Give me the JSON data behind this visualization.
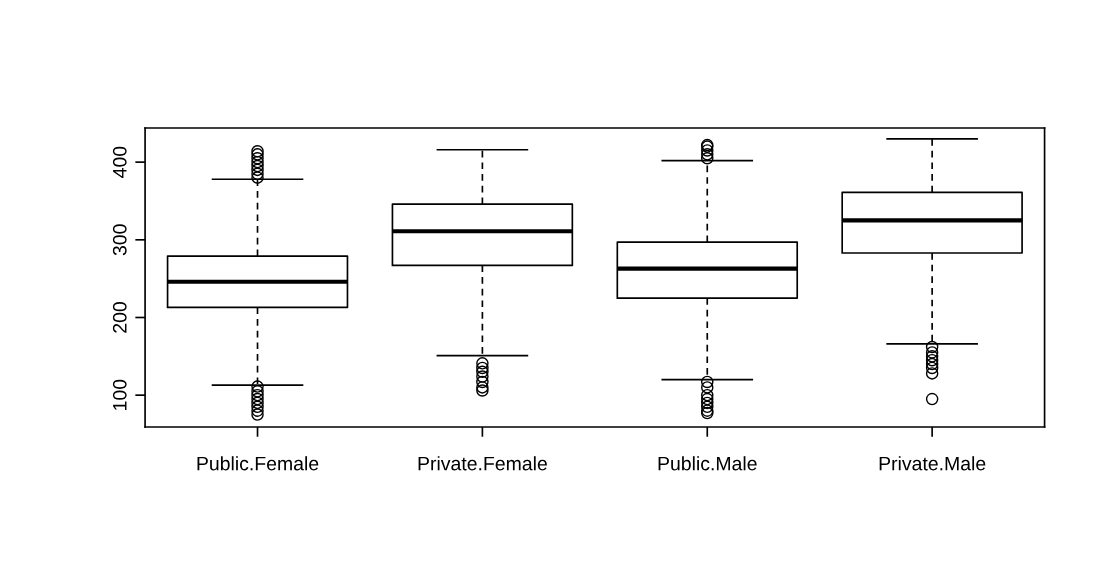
{
  "chart_data": {
    "type": "box",
    "categories": [
      "Public.Female",
      "Private.Female",
      "Public.Male",
      "Private.Male"
    ],
    "boxes": [
      {
        "low": 113,
        "q1": 213,
        "median": 246,
        "q3": 279,
        "high": 378,
        "outliers": [
          380,
          385,
          390,
          395,
          400,
          405,
          410,
          414,
          111,
          105,
          100,
          95,
          90,
          85,
          80,
          75
        ]
      },
      {
        "low": 151,
        "q1": 267,
        "median": 311,
        "q3": 346,
        "high": 416,
        "outliers": [
          141,
          135,
          130,
          124,
          117,
          110,
          106
        ]
      },
      {
        "low": 120,
        "q1": 225,
        "median": 263,
        "q3": 297,
        "high": 402,
        "outliers": [
          405,
          410,
          415,
          420,
          422,
          117,
          110,
          100,
          95,
          90,
          85,
          80,
          77
        ]
      },
      {
        "low": 166,
        "q1": 283,
        "median": 325,
        "q3": 361,
        "high": 430,
        "outliers": [
          162,
          155,
          150,
          145,
          140,
          135,
          128,
          95
        ]
      }
    ],
    "ylim": [
      59,
      444
    ],
    "yticks": [
      100,
      200,
      300,
      400
    ],
    "grid": false
  }
}
